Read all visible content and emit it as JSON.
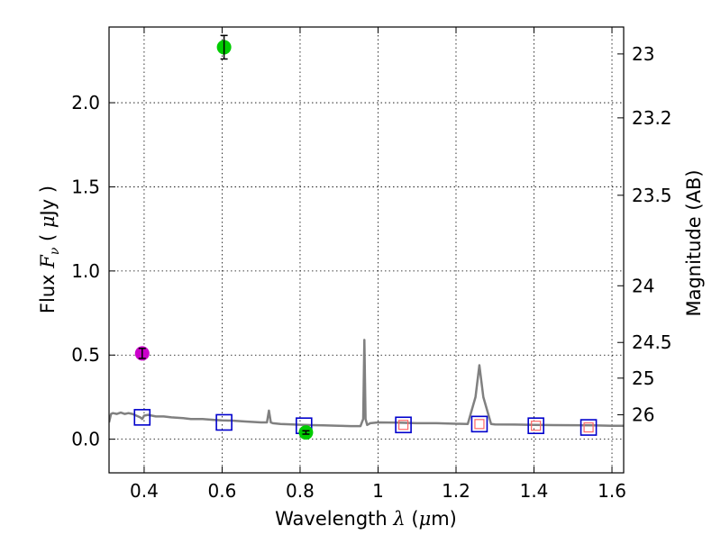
{
  "chart_data": {
    "type": "scatter",
    "title": "",
    "xlabel": "Wavelength  λ (μm)",
    "ylabel": "Flux  F_ν  ( μJy )",
    "ylabel_right": "Magnitude (AB)",
    "xlim": [
      0.31,
      1.63
    ],
    "ylim": [
      -0.2,
      2.45
    ],
    "grid": true,
    "legend": "none",
    "x_ticks": [
      0.4,
      0.6,
      0.8,
      1.0,
      1.2,
      1.4,
      1.6
    ],
    "x_tick_labels": [
      "0.4",
      "0.6",
      "0.8",
      "1",
      "1.2",
      "1.4",
      "1.6"
    ],
    "y_ticks": [
      0.0,
      0.5,
      1.0,
      1.5,
      2.0
    ],
    "y_tick_labels": [
      "0.0",
      "0.5",
      "1.0",
      "1.5",
      "2.0"
    ],
    "right_ticks": [
      {
        "label": "23",
        "flux": 2.29
      },
      {
        "label": "23.2",
        "flux": 1.91
      },
      {
        "label": "23.5",
        "flux": 1.45
      },
      {
        "label": "24",
        "flux": 0.912
      },
      {
        "label": "24.5",
        "flux": 0.575
      },
      {
        "label": "25",
        "flux": 0.363
      },
      {
        "label": "26",
        "flux": 0.145
      }
    ],
    "series": [
      {
        "name": "model SED",
        "kind": "line",
        "color": "#808080",
        "x": [
          0.31,
          0.315,
          0.32,
          0.33,
          0.34,
          0.35,
          0.36,
          0.37,
          0.38,
          0.39,
          0.395,
          0.4,
          0.41,
          0.42,
          0.43,
          0.45,
          0.47,
          0.5,
          0.52,
          0.55,
          0.58,
          0.6,
          0.63,
          0.66,
          0.7,
          0.715,
          0.72,
          0.725,
          0.73,
          0.75,
          0.78,
          0.8,
          0.83,
          0.86,
          0.9,
          0.93,
          0.955,
          0.962,
          0.965,
          0.968,
          0.972,
          0.98,
          1.0,
          1.05,
          1.1,
          1.15,
          1.2,
          1.23,
          1.25,
          1.26,
          1.27,
          1.29,
          1.3,
          1.35,
          1.4,
          1.45,
          1.5,
          1.55,
          1.6,
          1.63
        ],
        "y": [
          0.1,
          0.15,
          0.155,
          0.15,
          0.158,
          0.15,
          0.155,
          0.15,
          0.14,
          0.13,
          0.12,
          0.14,
          0.145,
          0.14,
          0.135,
          0.135,
          0.13,
          0.125,
          0.12,
          0.12,
          0.115,
          0.112,
          0.11,
          0.105,
          0.1,
          0.1,
          0.17,
          0.1,
          0.095,
          0.09,
          0.088,
          0.086,
          0.084,
          0.082,
          0.08,
          0.078,
          0.078,
          0.12,
          0.59,
          0.12,
          0.085,
          0.095,
          0.1,
          0.098,
          0.095,
          0.095,
          0.092,
          0.09,
          0.25,
          0.44,
          0.25,
          0.09,
          0.088,
          0.087,
          0.085,
          0.084,
          0.083,
          0.082,
          0.08,
          0.08
        ]
      },
      {
        "name": "model photometry",
        "kind": "square",
        "color": "#0000cc",
        "x": [
          0.395,
          0.605,
          0.81,
          1.065,
          1.26,
          1.405,
          1.54
        ],
        "y": [
          0.13,
          0.1,
          0.08,
          0.085,
          0.09,
          0.08,
          0.07
        ]
      },
      {
        "name": "upper limits",
        "kind": "square",
        "color": "#ff6666",
        "x": [
          1.065,
          1.26,
          1.405,
          1.54
        ],
        "y": [
          0.085,
          0.09,
          0.08,
          0.07
        ]
      },
      {
        "name": "observed (green)",
        "kind": "point",
        "color": "#00cc00",
        "x": [
          0.605,
          0.815
        ],
        "y": [
          2.33,
          0.04
        ],
        "yerr": [
          0.07,
          0.01
        ]
      },
      {
        "name": "observed (magenta)",
        "kind": "point",
        "color": "#cc00cc",
        "x": [
          0.395
        ],
        "y": [
          0.51
        ],
        "yerr": [
          0.03
        ]
      }
    ]
  }
}
